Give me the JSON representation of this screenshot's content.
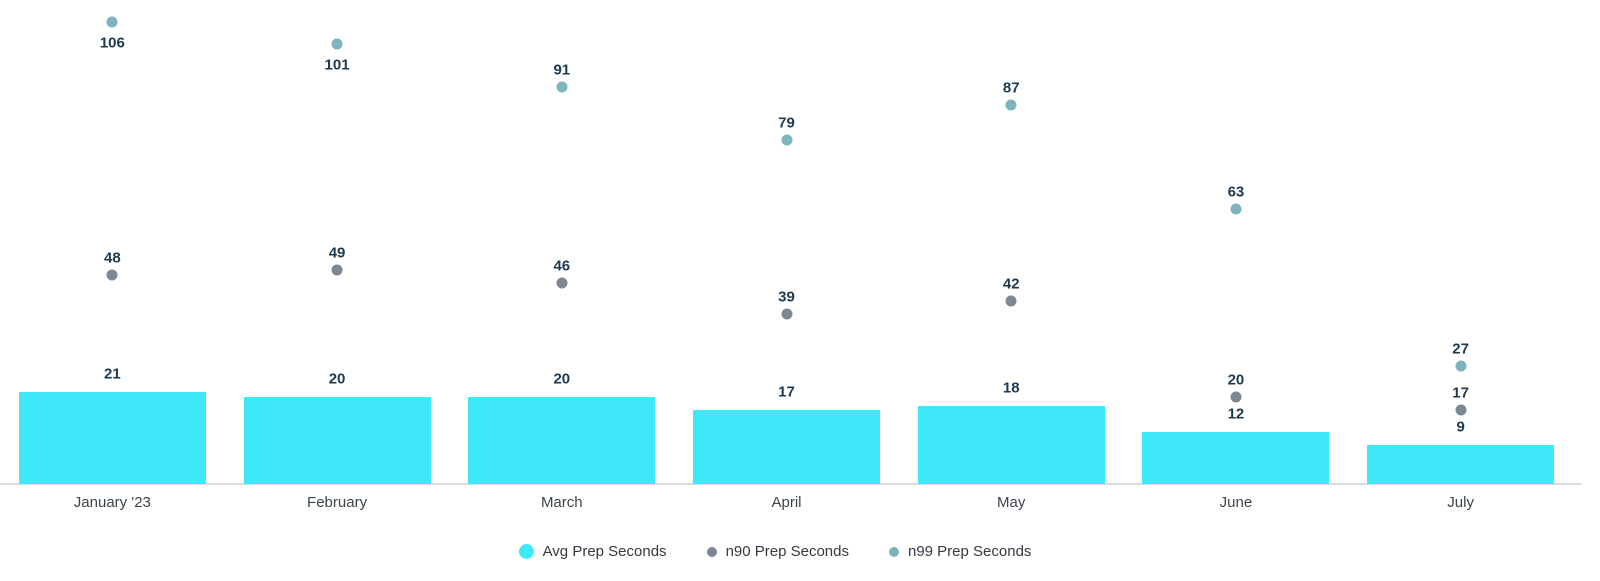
{
  "chart_data": {
    "type": "bar",
    "title": "",
    "xlabel": "",
    "ylabel": "",
    "categories": [
      "January '23",
      "February",
      "March",
      "April",
      "May",
      "June",
      "July"
    ],
    "series": [
      {
        "name": "Avg Prep Seconds",
        "kind": "bar",
        "color": "#3fe8f8",
        "values": [
          21,
          20,
          20,
          17,
          18,
          12,
          9
        ]
      },
      {
        "name": "n90 Prep Seconds",
        "kind": "point",
        "color": "#7c8894",
        "values": [
          48,
          49,
          46,
          39,
          42,
          20,
          17
        ]
      },
      {
        "name": "n99 Prep Seconds",
        "kind": "point",
        "color": "#7db4be",
        "values": [
          106,
          101,
          91,
          79,
          87,
          63,
          27
        ],
        "labels_below_at": [
          0,
          1
        ]
      }
    ],
    "ylim": [
      0,
      111
    ],
    "grid": false,
    "value_labels": true,
    "legend_position": "bottom-center",
    "colors": {
      "background": "#ffffff",
      "value_label": "#1d3a4f",
      "axis_label": "#3b454e",
      "legend_label": "#333a41",
      "axis_line": "#d9dde2"
    }
  }
}
